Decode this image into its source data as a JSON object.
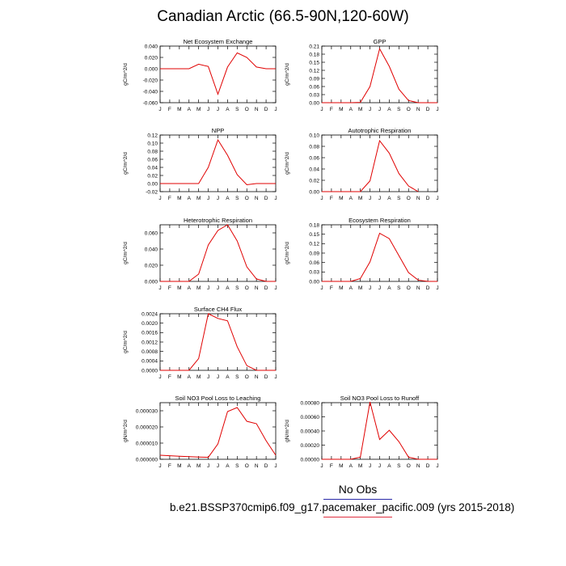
{
  "title": "Canadian Arctic (66.5-90N,120-60W)",
  "legend": {
    "obs_label": "No Obs"
  },
  "footer": {
    "case_label": "b.e21.BSSP370cmip6.f09_g17.pacemaker_pacific.009 (yrs 2015-2018)"
  },
  "colors": {
    "series": "#e00000",
    "obs_line": "#2a2aa8",
    "case_line": "#e03040"
  },
  "chart_data": [
    {
      "type": "line",
      "title": "Net Ecosystem Exchange",
      "ylabel": "gC/m^2/d",
      "categories": [
        "J",
        "F",
        "M",
        "A",
        "M",
        "J",
        "J",
        "A",
        "S",
        "O",
        "N",
        "D",
        "J"
      ],
      "yticks": [
        "0.040",
        "0.020",
        "0.000",
        "-0.020",
        "-0.040",
        "-0.060"
      ],
      "ytick_values": [
        0.04,
        0.02,
        0,
        -0.02,
        -0.04,
        -0.06
      ],
      "ylim": [
        -0.06,
        0.04
      ],
      "values": [
        0.0,
        0.0,
        0.0,
        0.0,
        0.008,
        0.004,
        -0.045,
        0.003,
        0.028,
        0.02,
        0.003,
        0.0,
        0.0
      ]
    },
    {
      "type": "line",
      "title": "GPP",
      "ylabel": "gC/m^2/d",
      "categories": [
        "J",
        "F",
        "M",
        "A",
        "M",
        "J",
        "J",
        "A",
        "S",
        "O",
        "N",
        "D",
        "J"
      ],
      "yticks": [
        "0.21",
        "0.18",
        "0.15",
        "0.12",
        "0.09",
        "0.06",
        "0.03",
        "0.00"
      ],
      "ytick_values": [
        0.21,
        0.18,
        0.15,
        0.12,
        0.09,
        0.06,
        0.03,
        0
      ],
      "ylim": [
        0,
        0.21
      ],
      "values": [
        0.0,
        0.0,
        0.0,
        0.0,
        0.001,
        0.06,
        0.2,
        0.135,
        0.05,
        0.008,
        0.0,
        0.0,
        0.0
      ]
    },
    {
      "type": "line",
      "title": "NPP",
      "ylabel": "gC/m^2/d",
      "categories": [
        "J",
        "F",
        "M",
        "A",
        "M",
        "J",
        "J",
        "A",
        "S",
        "O",
        "N",
        "D",
        "J"
      ],
      "yticks": [
        "0.12",
        "0.10",
        "0.08",
        "0.06",
        "0.04",
        "0.02",
        "0.00",
        "-0.02"
      ],
      "ytick_values": [
        0.12,
        0.1,
        0.08,
        0.06,
        0.04,
        0.02,
        0,
        -0.02
      ],
      "ylim": [
        -0.02,
        0.12
      ],
      "values": [
        0.0,
        0.0,
        0.0,
        0.0,
        0.0,
        0.04,
        0.108,
        0.07,
        0.022,
        -0.003,
        0.0,
        0.0,
        0.0
      ]
    },
    {
      "type": "line",
      "title": "Autotrophic Respiration",
      "ylabel": "gC/m^2/d",
      "categories": [
        "J",
        "F",
        "M",
        "A",
        "M",
        "J",
        "J",
        "A",
        "S",
        "O",
        "N",
        "D",
        "J"
      ],
      "yticks": [
        "0.10",
        "0.08",
        "0.06",
        "0.04",
        "0.02",
        "0.00"
      ],
      "ytick_values": [
        0.1,
        0.08,
        0.06,
        0.04,
        0.02,
        0
      ],
      "ylim": [
        0,
        0.1
      ],
      "values": [
        0.0,
        0.0,
        0.0,
        0.0,
        0.0,
        0.019,
        0.09,
        0.068,
        0.032,
        0.01,
        0.0,
        null,
        null
      ]
    },
    {
      "type": "line",
      "title": "Heterotrophic Respiration",
      "ylabel": "gC/m^2/d",
      "categories": [
        "J",
        "F",
        "M",
        "A",
        "M",
        "J",
        "J",
        "A",
        "S",
        "O",
        "N",
        "D",
        "J"
      ],
      "yticks": [
        "0.060",
        "0.040",
        "0.020",
        "0.000"
      ],
      "ytick_values": [
        0.06,
        0.04,
        0.02,
        0
      ],
      "ylim": [
        0,
        0.07
      ],
      "values": [
        0.0,
        0.0,
        0.0,
        0.0,
        0.009,
        0.045,
        0.063,
        0.07,
        0.05,
        0.018,
        0.003,
        0.0,
        0.0
      ]
    },
    {
      "type": "line",
      "title": "Ecosystem Respiration",
      "ylabel": "gC/m^2/d",
      "categories": [
        "J",
        "F",
        "M",
        "A",
        "M",
        "J",
        "J",
        "A",
        "S",
        "O",
        "N",
        "D",
        "J"
      ],
      "yticks": [
        "0.18",
        "0.15",
        "0.12",
        "0.09",
        "0.06",
        "0.03",
        "0.00"
      ],
      "ytick_values": [
        0.18,
        0.15,
        0.12,
        0.09,
        0.06,
        0.03,
        0
      ],
      "ylim": [
        0,
        0.18
      ],
      "values": [
        0.0,
        0.0,
        0.0,
        0.0,
        0.009,
        0.062,
        0.153,
        0.136,
        0.082,
        0.028,
        0.004,
        0.0,
        0.0
      ]
    },
    {
      "type": "line",
      "title": "Surface CH4 Flux",
      "ylabel": "gC/m^2/d",
      "categories": [
        "J",
        "F",
        "M",
        "A",
        "M",
        "J",
        "J",
        "A",
        "S",
        "O",
        "N",
        "D",
        "J"
      ],
      "yticks": [
        "0.0024",
        "0.0020",
        "0.0016",
        "0.0012",
        "0.0008",
        "0.0004",
        "0.0000"
      ],
      "ytick_values": [
        0.0024,
        0.002,
        0.0016,
        0.0012,
        0.0008,
        0.0004,
        0
      ],
      "ylim": [
        0,
        0.0024
      ],
      "values": [
        0.0,
        0.0,
        0.0,
        0.0,
        0.0005,
        0.0024,
        0.0022,
        0.0021,
        0.001,
        0.0002,
        0.0,
        0.0,
        0.0
      ]
    },
    {
      "type": "line",
      "title": "Soil NO3 Pool Loss to Leaching",
      "ylabel": "gN/m^2/d",
      "categories": [
        "J",
        "F",
        "M",
        "A",
        "M",
        "J",
        "J",
        "A",
        "S",
        "O",
        "N",
        "D",
        "J"
      ],
      "yticks": [
        "0.000030",
        "0.000020",
        "0.000010",
        "0.000000"
      ],
      "ytick_values": [
        3e-05,
        2e-05,
        1e-05,
        0
      ],
      "ylim": [
        0,
        3.5e-05
      ],
      "values": [
        2.5e-06,
        2.2e-06,
        1.9e-06,
        1.6e-06,
        1.4e-06,
        1.2e-06,
        9.5e-06,
        2.95e-05,
        3.2e-05,
        2.35e-05,
        2.2e-05,
        1.15e-05,
        2.5e-06
      ]
    },
    {
      "type": "line",
      "title": "Soil NO3 Pool Loss to Runoff",
      "ylabel": "gN/m^2/d",
      "categories": [
        "J",
        "F",
        "M",
        "A",
        "M",
        "J",
        "J",
        "A",
        "S",
        "O",
        "N",
        "D",
        "J"
      ],
      "yticks": [
        "0.00080",
        "0.00060",
        "0.00040",
        "0.00020",
        "0.00000"
      ],
      "ytick_values": [
        0.0008,
        0.0006,
        0.0004,
        0.0002,
        0
      ],
      "ylim": [
        0,
        0.0008
      ],
      "values": [
        0.0,
        0.0,
        0.0,
        0.0,
        3e-05,
        0.00081,
        0.00028,
        0.00041,
        0.00025,
        3e-05,
        0.0,
        0.0,
        0.0
      ]
    }
  ]
}
